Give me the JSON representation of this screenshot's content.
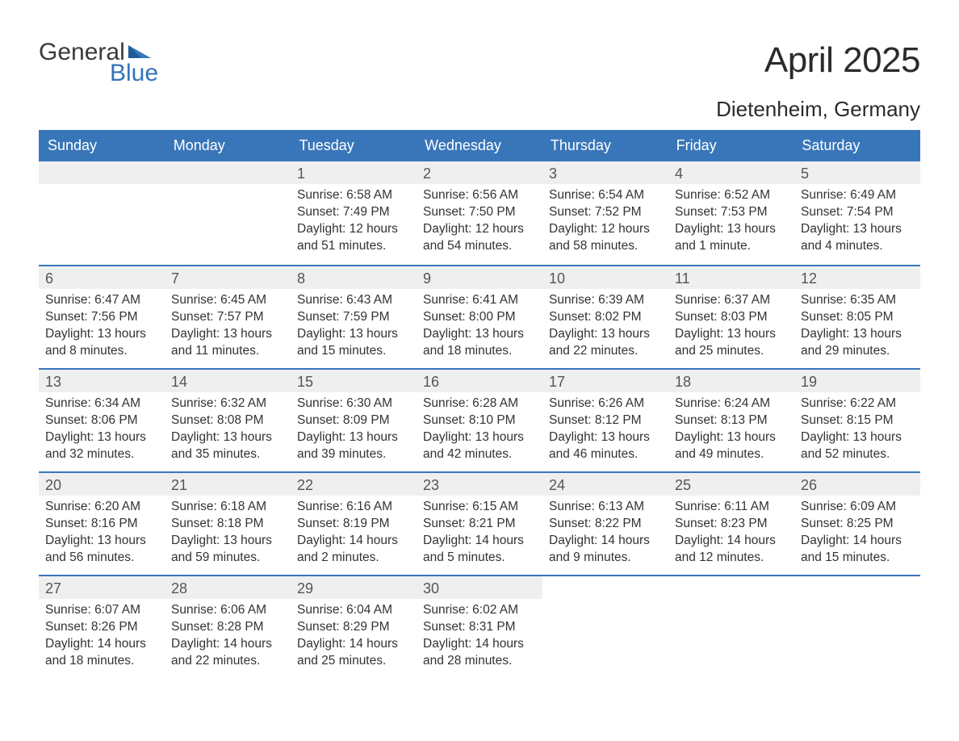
{
  "logo": {
    "word1": "General",
    "word2": "Blue",
    "flag_color": "#3976b9"
  },
  "title": "April 2025",
  "location": "Dietenheim, Germany",
  "colors": {
    "header_bg": "#3976b9",
    "header_text": "#ffffff",
    "week_border": "#3976b9",
    "daynum_bg": "#efefef",
    "text": "#333333"
  },
  "day_headers": [
    "Sunday",
    "Monday",
    "Tuesday",
    "Wednesday",
    "Thursday",
    "Friday",
    "Saturday"
  ],
  "weeks": [
    [
      {
        "empty": true
      },
      {
        "empty": true
      },
      {
        "day": "1",
        "sunrise": "Sunrise: 6:58 AM",
        "sunset": "Sunset: 7:49 PM",
        "dl1": "Daylight: 12 hours",
        "dl2": "and 51 minutes."
      },
      {
        "day": "2",
        "sunrise": "Sunrise: 6:56 AM",
        "sunset": "Sunset: 7:50 PM",
        "dl1": "Daylight: 12 hours",
        "dl2": "and 54 minutes."
      },
      {
        "day": "3",
        "sunrise": "Sunrise: 6:54 AM",
        "sunset": "Sunset: 7:52 PM",
        "dl1": "Daylight: 12 hours",
        "dl2": "and 58 minutes."
      },
      {
        "day": "4",
        "sunrise": "Sunrise: 6:52 AM",
        "sunset": "Sunset: 7:53 PM",
        "dl1": "Daylight: 13 hours",
        "dl2": "and 1 minute."
      },
      {
        "day": "5",
        "sunrise": "Sunrise: 6:49 AM",
        "sunset": "Sunset: 7:54 PM",
        "dl1": "Daylight: 13 hours",
        "dl2": "and 4 minutes."
      }
    ],
    [
      {
        "day": "6",
        "sunrise": "Sunrise: 6:47 AM",
        "sunset": "Sunset: 7:56 PM",
        "dl1": "Daylight: 13 hours",
        "dl2": "and 8 minutes."
      },
      {
        "day": "7",
        "sunrise": "Sunrise: 6:45 AM",
        "sunset": "Sunset: 7:57 PM",
        "dl1": "Daylight: 13 hours",
        "dl2": "and 11 minutes."
      },
      {
        "day": "8",
        "sunrise": "Sunrise: 6:43 AM",
        "sunset": "Sunset: 7:59 PM",
        "dl1": "Daylight: 13 hours",
        "dl2": "and 15 minutes."
      },
      {
        "day": "9",
        "sunrise": "Sunrise: 6:41 AM",
        "sunset": "Sunset: 8:00 PM",
        "dl1": "Daylight: 13 hours",
        "dl2": "and 18 minutes."
      },
      {
        "day": "10",
        "sunrise": "Sunrise: 6:39 AM",
        "sunset": "Sunset: 8:02 PM",
        "dl1": "Daylight: 13 hours",
        "dl2": "and 22 minutes."
      },
      {
        "day": "11",
        "sunrise": "Sunrise: 6:37 AM",
        "sunset": "Sunset: 8:03 PM",
        "dl1": "Daylight: 13 hours",
        "dl2": "and 25 minutes."
      },
      {
        "day": "12",
        "sunrise": "Sunrise: 6:35 AM",
        "sunset": "Sunset: 8:05 PM",
        "dl1": "Daylight: 13 hours",
        "dl2": "and 29 minutes."
      }
    ],
    [
      {
        "day": "13",
        "sunrise": "Sunrise: 6:34 AM",
        "sunset": "Sunset: 8:06 PM",
        "dl1": "Daylight: 13 hours",
        "dl2": "and 32 minutes."
      },
      {
        "day": "14",
        "sunrise": "Sunrise: 6:32 AM",
        "sunset": "Sunset: 8:08 PM",
        "dl1": "Daylight: 13 hours",
        "dl2": "and 35 minutes."
      },
      {
        "day": "15",
        "sunrise": "Sunrise: 6:30 AM",
        "sunset": "Sunset: 8:09 PM",
        "dl1": "Daylight: 13 hours",
        "dl2": "and 39 minutes."
      },
      {
        "day": "16",
        "sunrise": "Sunrise: 6:28 AM",
        "sunset": "Sunset: 8:10 PM",
        "dl1": "Daylight: 13 hours",
        "dl2": "and 42 minutes."
      },
      {
        "day": "17",
        "sunrise": "Sunrise: 6:26 AM",
        "sunset": "Sunset: 8:12 PM",
        "dl1": "Daylight: 13 hours",
        "dl2": "and 46 minutes."
      },
      {
        "day": "18",
        "sunrise": "Sunrise: 6:24 AM",
        "sunset": "Sunset: 8:13 PM",
        "dl1": "Daylight: 13 hours",
        "dl2": "and 49 minutes."
      },
      {
        "day": "19",
        "sunrise": "Sunrise: 6:22 AM",
        "sunset": "Sunset: 8:15 PM",
        "dl1": "Daylight: 13 hours",
        "dl2": "and 52 minutes."
      }
    ],
    [
      {
        "day": "20",
        "sunrise": "Sunrise: 6:20 AM",
        "sunset": "Sunset: 8:16 PM",
        "dl1": "Daylight: 13 hours",
        "dl2": "and 56 minutes."
      },
      {
        "day": "21",
        "sunrise": "Sunrise: 6:18 AM",
        "sunset": "Sunset: 8:18 PM",
        "dl1": "Daylight: 13 hours",
        "dl2": "and 59 minutes."
      },
      {
        "day": "22",
        "sunrise": "Sunrise: 6:16 AM",
        "sunset": "Sunset: 8:19 PM",
        "dl1": "Daylight: 14 hours",
        "dl2": "and 2 minutes."
      },
      {
        "day": "23",
        "sunrise": "Sunrise: 6:15 AM",
        "sunset": "Sunset: 8:21 PM",
        "dl1": "Daylight: 14 hours",
        "dl2": "and 5 minutes."
      },
      {
        "day": "24",
        "sunrise": "Sunrise: 6:13 AM",
        "sunset": "Sunset: 8:22 PM",
        "dl1": "Daylight: 14 hours",
        "dl2": "and 9 minutes."
      },
      {
        "day": "25",
        "sunrise": "Sunrise: 6:11 AM",
        "sunset": "Sunset: 8:23 PM",
        "dl1": "Daylight: 14 hours",
        "dl2": "and 12 minutes."
      },
      {
        "day": "26",
        "sunrise": "Sunrise: 6:09 AM",
        "sunset": "Sunset: 8:25 PM",
        "dl1": "Daylight: 14 hours",
        "dl2": "and 15 minutes."
      }
    ],
    [
      {
        "day": "27",
        "sunrise": "Sunrise: 6:07 AM",
        "sunset": "Sunset: 8:26 PM",
        "dl1": "Daylight: 14 hours",
        "dl2": "and 18 minutes."
      },
      {
        "day": "28",
        "sunrise": "Sunrise: 6:06 AM",
        "sunset": "Sunset: 8:28 PM",
        "dl1": "Daylight: 14 hours",
        "dl2": "and 22 minutes."
      },
      {
        "day": "29",
        "sunrise": "Sunrise: 6:04 AM",
        "sunset": "Sunset: 8:29 PM",
        "dl1": "Daylight: 14 hours",
        "dl2": "and 25 minutes."
      },
      {
        "day": "30",
        "sunrise": "Sunrise: 6:02 AM",
        "sunset": "Sunset: 8:31 PM",
        "dl1": "Daylight: 14 hours",
        "dl2": "and 28 minutes."
      },
      {
        "empty": true
      },
      {
        "empty": true
      },
      {
        "empty": true
      }
    ]
  ]
}
